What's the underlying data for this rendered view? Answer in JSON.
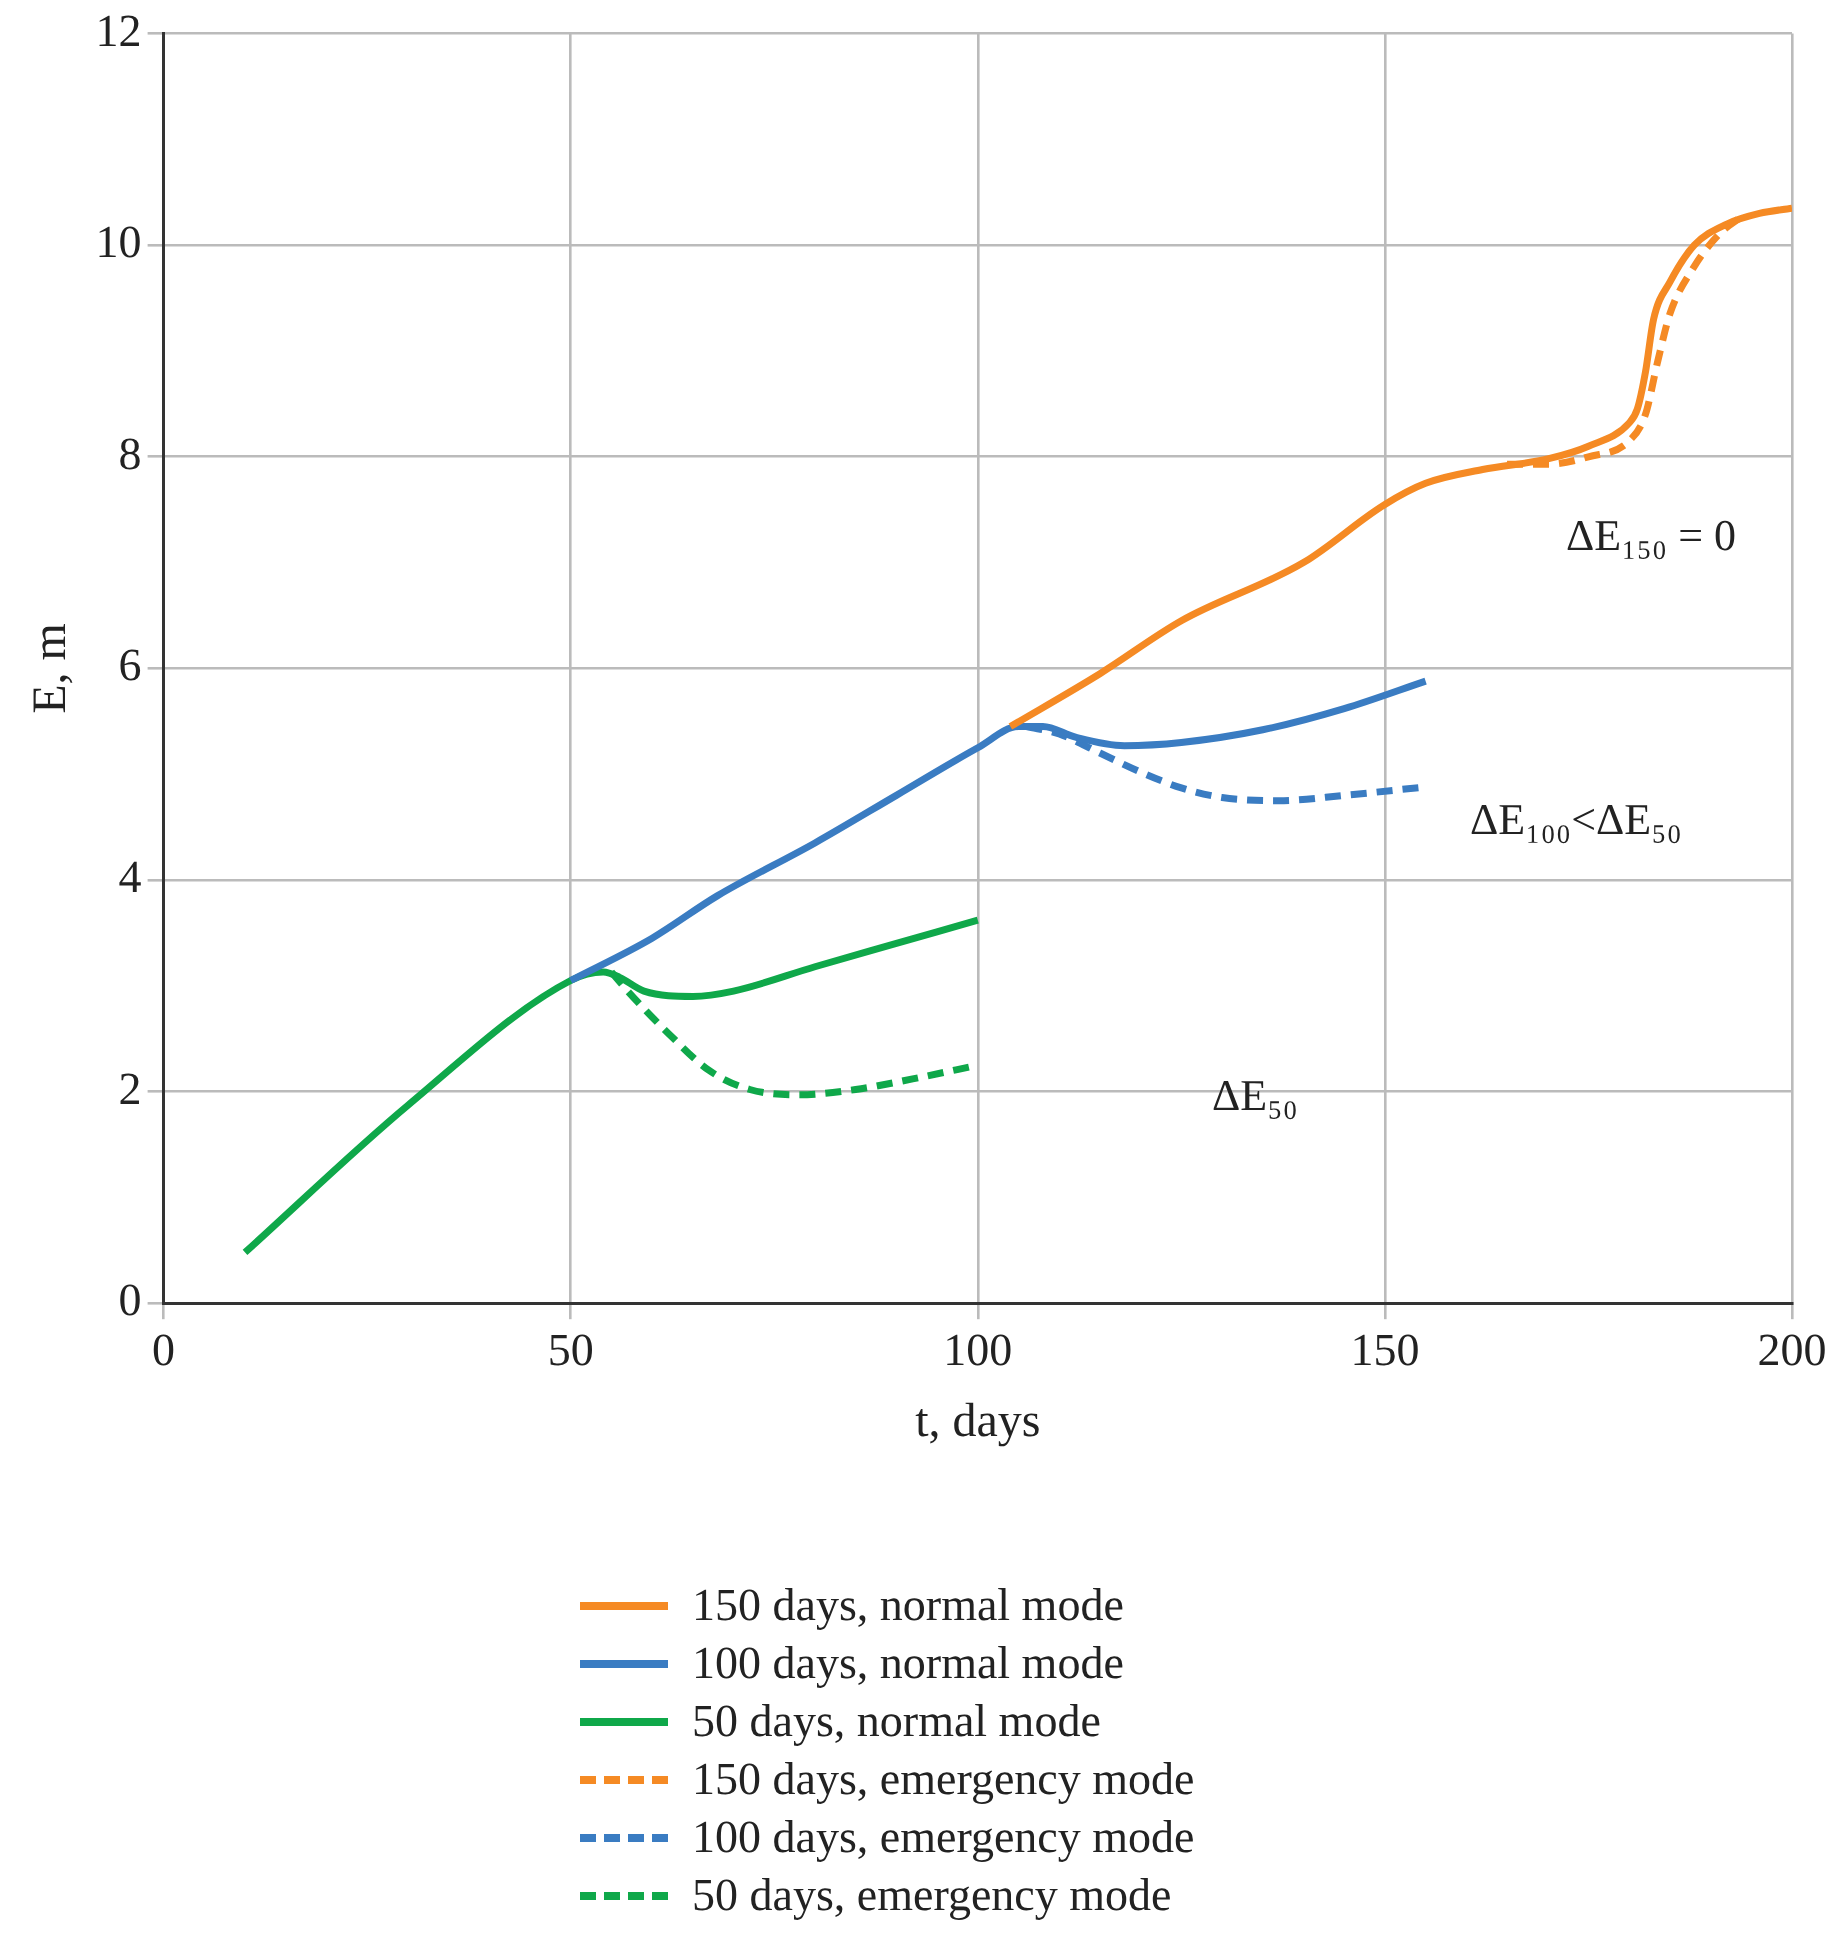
{
  "chart_data": {
    "type": "line",
    "xlabel": "t, days",
    "ylabel": "E, m",
    "xlim": [
      0,
      200
    ],
    "ylim": [
      0,
      12
    ],
    "xticks": [
      0,
      50,
      100,
      150,
      200
    ],
    "yticks": [
      0,
      2,
      4,
      6,
      8,
      10,
      12
    ],
    "grid": true,
    "legend": "bottom",
    "marker": "none",
    "series": [
      {
        "name": "150 days, normal mode",
        "color": "#f58a24",
        "line_style": "solid",
        "x": [
          104,
          115,
          125,
          140,
          150,
          155,
          162,
          170,
          175,
          180,
          181,
          182,
          183,
          185,
          188,
          192,
          196,
          200
        ],
        "values": [
          5.45,
          5.95,
          6.45,
          7.0,
          7.55,
          7.75,
          7.88,
          7.98,
          8.1,
          8.32,
          8.45,
          8.8,
          9.3,
          9.65,
          10.0,
          10.2,
          10.3,
          10.35
        ]
      },
      {
        "name": "100 days, normal mode",
        "color": "#3a7cc2",
        "line_style": "solid",
        "x": [
          50,
          60,
          68,
          80,
          90,
          100,
          105,
          108,
          112,
          118,
          125,
          135,
          145,
          155
        ],
        "values": [
          3.05,
          3.45,
          3.85,
          4.35,
          4.8,
          5.25,
          5.45,
          5.45,
          5.35,
          5.27,
          5.3,
          5.42,
          5.62,
          5.88
        ]
      },
      {
        "name": "50 days, normal mode",
        "color": "#0fa84a",
        "line_style": "solid",
        "x": [
          10,
          30,
          50,
          54,
          56,
          59,
          65,
          70,
          80,
          90,
          100
        ],
        "values": [
          0.48,
          1.87,
          3.05,
          3.13,
          3.08,
          2.95,
          2.9,
          2.95,
          3.18,
          3.4,
          3.62
        ]
      },
      {
        "name": "150 days, emergency mode",
        "color": "#f58a24",
        "line_style": "dashed",
        "x": [
          165,
          170,
          175,
          180,
          182,
          183.5,
          185,
          188,
          191,
          194
        ],
        "values": [
          7.93,
          7.93,
          8.0,
          8.15,
          8.4,
          8.9,
          9.35,
          9.8,
          10.1,
          10.28
        ]
      },
      {
        "name": "100 days, emergency mode",
        "color": "#3a7cc2",
        "line_style": "dashed",
        "x": [
          106,
          110,
          115,
          120,
          125,
          130,
          137,
          145,
          155
        ],
        "values": [
          5.45,
          5.38,
          5.2,
          5.02,
          4.87,
          4.78,
          4.75,
          4.8,
          4.88
        ]
      },
      {
        "name": "50 days, emergency mode",
        "color": "#0fa84a",
        "line_style": "dashed",
        "x": [
          55,
          57,
          62,
          67,
          72,
          78,
          85,
          92,
          100
        ],
        "values": [
          3.13,
          2.95,
          2.55,
          2.2,
          2.02,
          1.97,
          2.02,
          2.12,
          2.25
        ]
      }
    ],
    "annotations": [
      "ΔE₁₅₀ = 0",
      "ΔE₁₀₀<ΔE₅₀",
      "ΔE₅₀"
    ]
  }
}
